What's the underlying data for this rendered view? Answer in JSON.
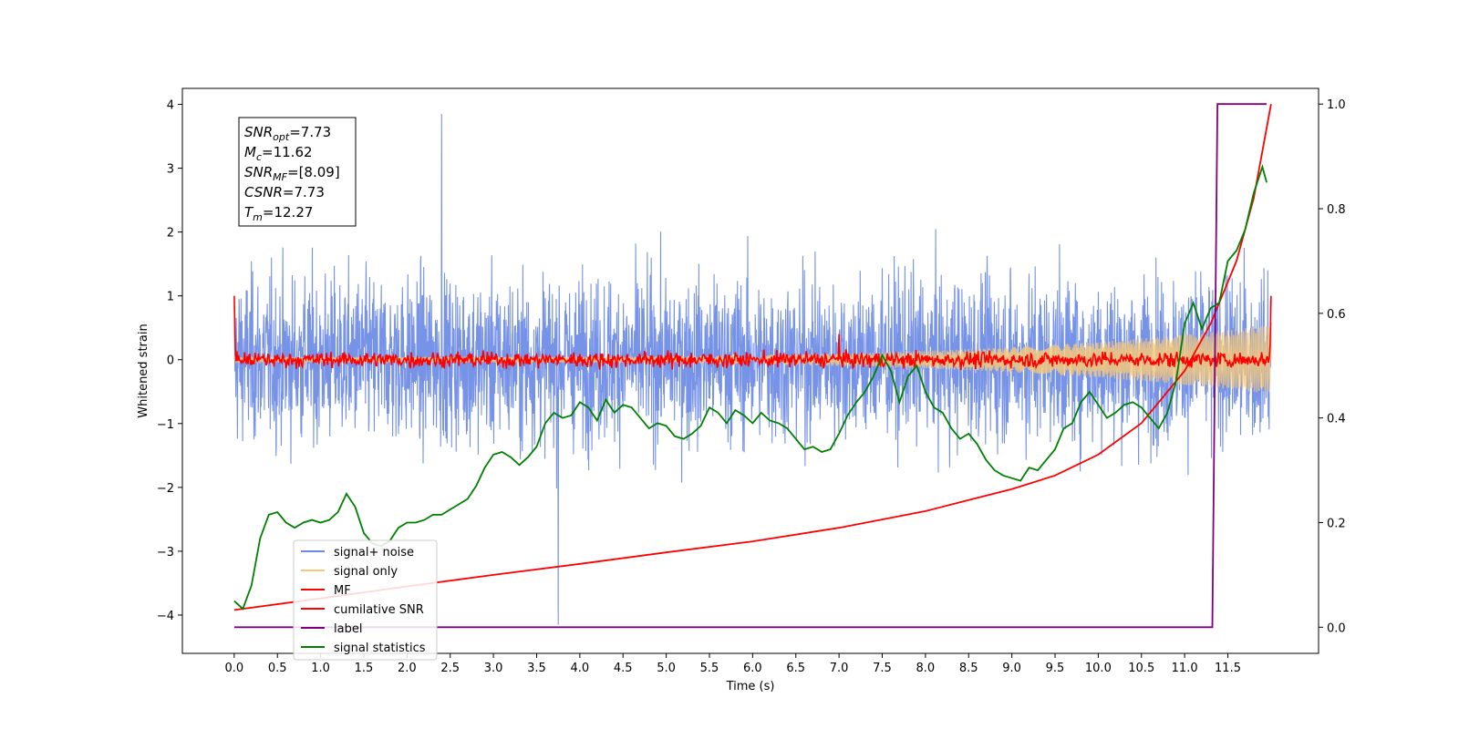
{
  "chart_data": {
    "type": "line",
    "xlabel": "Time (s)",
    "ylabel": "Whitened strain",
    "xlim": [
      -0.6,
      12.55
    ],
    "ylim": [
      -4.6,
      4.25
    ],
    "y2lim": [
      -0.05,
      1.03
    ],
    "xticks": [
      "0.0",
      "0.5",
      "1.0",
      "1.5",
      "2.0",
      "2.5",
      "3.0",
      "3.5",
      "4.0",
      "4.5",
      "5.0",
      "5.5",
      "6.0",
      "6.5",
      "7.0",
      "7.5",
      "8.0",
      "8.5",
      "9.0",
      "9.5",
      "10.0",
      "10.5",
      "11.0",
      "11.5"
    ],
    "yticks": [
      "−4",
      "−3",
      "−2",
      "−1",
      "0",
      "1",
      "2",
      "3",
      "4"
    ],
    "y2ticks": [
      "0.0",
      "0.2",
      "0.4",
      "0.6",
      "0.8",
      "1.0"
    ],
    "grid": false,
    "legend_position": "lower-left",
    "annotation": {
      "lines": [
        {
          "base": "SNR",
          "sub": "opt",
          "value": "=7.73"
        },
        {
          "base": "M",
          "sub": "c",
          "value": "=11.62"
        },
        {
          "base": "SNR",
          "sub": "MF",
          "value": "=[8.09]"
        },
        {
          "base": "CSNR",
          "sub": "",
          "value": "=7.73"
        },
        {
          "base": "T",
          "sub": "m",
          "value": "=12.27"
        }
      ]
    },
    "series": [
      {
        "name": "signal+ noise",
        "color": "#6b8ae6",
        "axis": "left",
        "style": "noise",
        "x_range": [
          0,
          12.0
        ],
        "amplitude": 2.2,
        "peak_max": 3.85,
        "peak_min": -4.15
      },
      {
        "name": "signal only",
        "color": "#f5c87a",
        "axis": "left",
        "style": "chirp",
        "x_range": [
          0,
          12.0
        ],
        "amplitude_end": 0.5
      },
      {
        "name": "MF",
        "color": "#ff0000",
        "axis": "left",
        "style": "matched-filter",
        "x_range": [
          0,
          12.0
        ],
        "start": 1.0,
        "end": 1.0,
        "level": 0.0
      },
      {
        "name": "cumilative SNR",
        "color": "#ff0000",
        "axis": "right",
        "x": [
          0.0,
          1.0,
          2.0,
          3.0,
          4.0,
          5.0,
          6.0,
          7.0,
          8.0,
          8.5,
          9.0,
          9.5,
          10.0,
          10.5,
          11.0,
          11.3,
          11.6,
          11.8,
          12.0
        ],
        "y": [
          0.033,
          0.055,
          0.078,
          0.1,
          0.121,
          0.143,
          0.164,
          0.19,
          0.222,
          0.243,
          0.264,
          0.29,
          0.33,
          0.39,
          0.49,
          0.58,
          0.7,
          0.82,
          1.0
        ]
      },
      {
        "name": "label",
        "color": "#800080",
        "axis": "right",
        "x": [
          0.0,
          11.32,
          11.38,
          11.95
        ],
        "y": [
          0.0,
          0.0,
          1.0,
          1.0
        ]
      },
      {
        "name": "signal statistics",
        "color": "#008000",
        "axis": "right",
        "x": [
          0.0,
          0.1,
          0.2,
          0.3,
          0.4,
          0.5,
          0.6,
          0.7,
          0.8,
          0.9,
          1.0,
          1.1,
          1.2,
          1.3,
          1.4,
          1.5,
          1.6,
          1.7,
          1.8,
          1.9,
          2.0,
          2.1,
          2.2,
          2.3,
          2.4,
          2.5,
          2.6,
          2.7,
          2.8,
          2.9,
          3.0,
          3.1,
          3.2,
          3.3,
          3.4,
          3.5,
          3.6,
          3.7,
          3.8,
          3.9,
          4.0,
          4.1,
          4.2,
          4.3,
          4.4,
          4.5,
          4.6,
          4.7,
          4.8,
          4.9,
          5.0,
          5.1,
          5.2,
          5.3,
          5.4,
          5.5,
          5.6,
          5.7,
          5.8,
          5.9,
          6.0,
          6.1,
          6.2,
          6.3,
          6.4,
          6.5,
          6.6,
          6.7,
          6.8,
          6.9,
          7.0,
          7.1,
          7.2,
          7.3,
          7.4,
          7.5,
          7.6,
          7.7,
          7.8,
          7.9,
          8.0,
          8.1,
          8.2,
          8.3,
          8.4,
          8.5,
          8.6,
          8.7,
          8.8,
          8.9,
          9.0,
          9.1,
          9.2,
          9.3,
          9.4,
          9.5,
          9.6,
          9.7,
          9.8,
          9.9,
          10.0,
          10.1,
          10.2,
          10.3,
          10.4,
          10.5,
          10.6,
          10.7,
          10.8,
          10.9,
          11.0,
          11.1,
          11.2,
          11.3,
          11.4,
          11.5,
          11.6,
          11.7,
          11.8,
          11.9,
          11.95
        ],
        "y": [
          0.05,
          0.035,
          0.08,
          0.17,
          0.215,
          0.22,
          0.2,
          0.19,
          0.2,
          0.205,
          0.2,
          0.205,
          0.22,
          0.255,
          0.23,
          0.18,
          0.16,
          0.155,
          0.165,
          0.19,
          0.2,
          0.2,
          0.205,
          0.215,
          0.215,
          0.225,
          0.235,
          0.245,
          0.27,
          0.305,
          0.33,
          0.335,
          0.325,
          0.31,
          0.325,
          0.345,
          0.39,
          0.41,
          0.4,
          0.405,
          0.43,
          0.42,
          0.395,
          0.435,
          0.41,
          0.425,
          0.42,
          0.4,
          0.38,
          0.39,
          0.385,
          0.365,
          0.36,
          0.37,
          0.385,
          0.42,
          0.41,
          0.39,
          0.415,
          0.405,
          0.39,
          0.41,
          0.395,
          0.39,
          0.38,
          0.36,
          0.34,
          0.345,
          0.335,
          0.34,
          0.37,
          0.405,
          0.43,
          0.45,
          0.48,
          0.52,
          0.49,
          0.43,
          0.48,
          0.5,
          0.45,
          0.42,
          0.41,
          0.38,
          0.36,
          0.37,
          0.35,
          0.32,
          0.3,
          0.29,
          0.285,
          0.28,
          0.305,
          0.3,
          0.32,
          0.34,
          0.38,
          0.39,
          0.43,
          0.45,
          0.425,
          0.4,
          0.41,
          0.425,
          0.43,
          0.42,
          0.4,
          0.38,
          0.41,
          0.47,
          0.58,
          0.62,
          0.57,
          0.61,
          0.62,
          0.7,
          0.72,
          0.76,
          0.83,
          0.88,
          0.85
        ]
      }
    ]
  }
}
